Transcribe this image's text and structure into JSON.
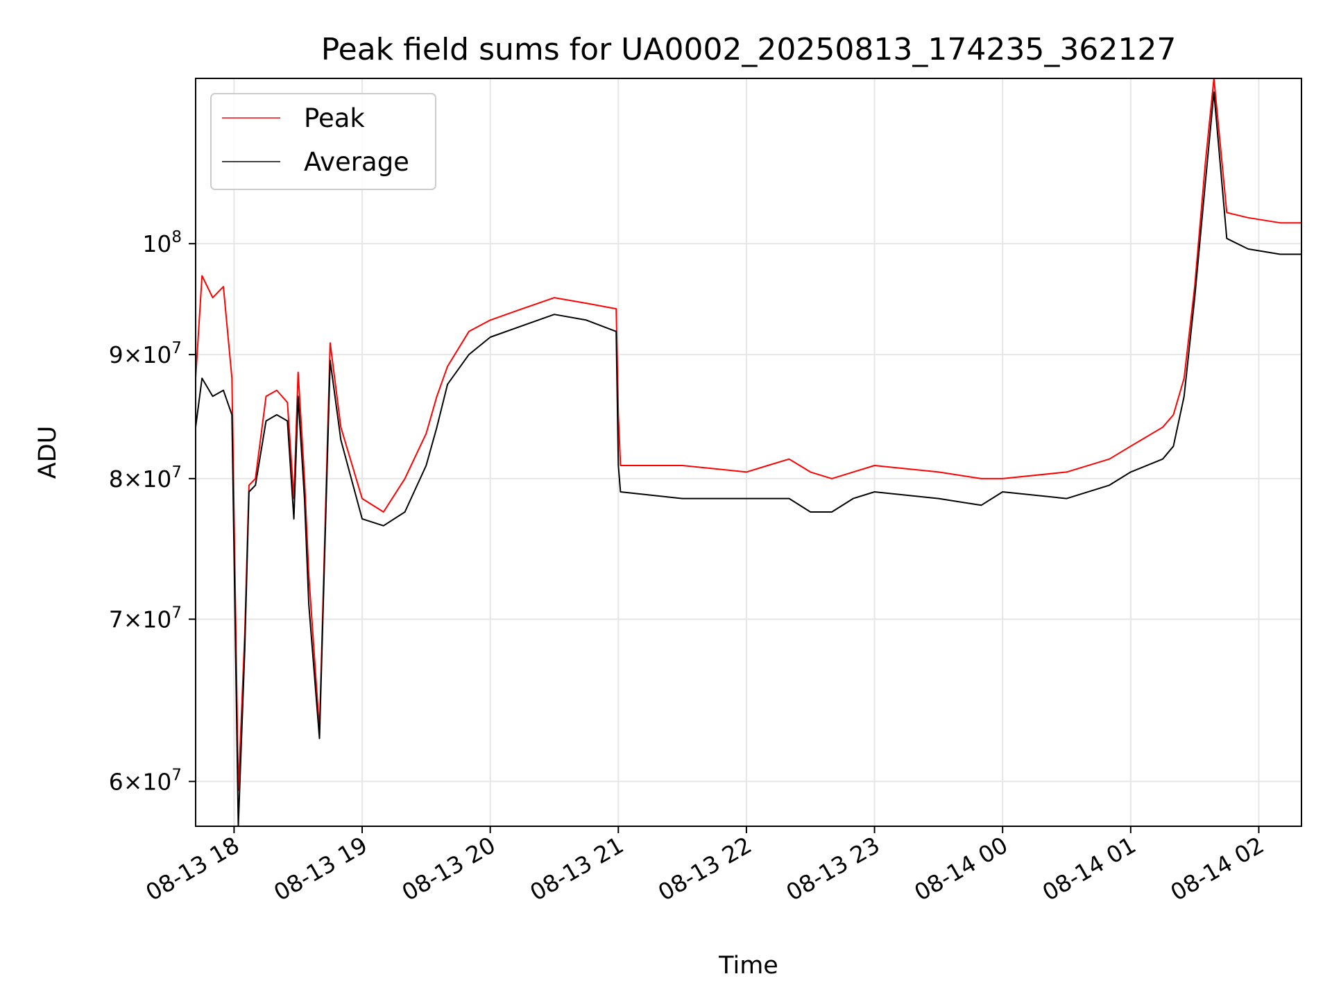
{
  "chart_data": {
    "type": "line",
    "title": "Peak field sums for UA0002_20250813_174235_362127",
    "xlabel": "Time",
    "ylabel": "ADU",
    "xscale": "time",
    "yscale": "log",
    "xlim": [
      "2025-08-13 17:42",
      "2025-08-14 02:20"
    ],
    "ylim": [
      57500000,
      117000000
    ],
    "x_ticks": [
      "2025-08-13 18:00",
      "2025-08-13 19:00",
      "2025-08-13 20:00",
      "2025-08-13 21:00",
      "2025-08-13 22:00",
      "2025-08-13 23:00",
      "2025-08-14 00:00",
      "2025-08-14 01:00",
      "2025-08-14 02:00"
    ],
    "x_tick_labels": [
      "08-13 18",
      "08-13 19",
      "08-13 20",
      "08-13 21",
      "08-13 22",
      "08-13 23",
      "08-14 00",
      "08-14 01",
      "08-14 02"
    ],
    "y_ticks": [
      {
        "value": 60000000,
        "mantissa": "6",
        "exponent": "7"
      },
      {
        "value": 70000000,
        "mantissa": "7",
        "exponent": "7"
      },
      {
        "value": 80000000,
        "mantissa": "8",
        "exponent": "7"
      },
      {
        "value": 90000000,
        "mantissa": "9",
        "exponent": "7"
      },
      {
        "value": 100000000,
        "mantissa": "",
        "exponent": "8"
      }
    ],
    "grid": true,
    "legend_position": "top-left",
    "series": [
      {
        "name": "Peak",
        "color": "#ff0000",
        "x": [
          "2025-08-13 17:42",
          "2025-08-13 17:45",
          "2025-08-13 17:50",
          "2025-08-13 17:55",
          "2025-08-13 17:59",
          "2025-08-13 18:02",
          "2025-08-13 18:05",
          "2025-08-13 18:07",
          "2025-08-13 18:10",
          "2025-08-13 18:15",
          "2025-08-13 18:20",
          "2025-08-13 18:25",
          "2025-08-13 18:28",
          "2025-08-13 18:30",
          "2025-08-13 18:33",
          "2025-08-13 18:35",
          "2025-08-13 18:40",
          "2025-08-13 18:45",
          "2025-08-13 18:50",
          "2025-08-13 19:00",
          "2025-08-13 19:10",
          "2025-08-13 19:20",
          "2025-08-13 19:30",
          "2025-08-13 19:35",
          "2025-08-13 19:40",
          "2025-08-13 19:50",
          "2025-08-13 20:00",
          "2025-08-13 20:15",
          "2025-08-13 20:30",
          "2025-08-13 20:45",
          "2025-08-13 20:59",
          "2025-08-13 21:00",
          "2025-08-13 21:01",
          "2025-08-13 21:30",
          "2025-08-13 22:00",
          "2025-08-13 22:10",
          "2025-08-13 22:20",
          "2025-08-13 22:30",
          "2025-08-13 22:40",
          "2025-08-13 22:50",
          "2025-08-13 23:00",
          "2025-08-13 23:30",
          "2025-08-13 23:50",
          "2025-08-14 00:00",
          "2025-08-14 00:30",
          "2025-08-14 00:50",
          "2025-08-14 01:00",
          "2025-08-14 01:15",
          "2025-08-14 01:20",
          "2025-08-14 01:25",
          "2025-08-14 01:30",
          "2025-08-14 01:35",
          "2025-08-14 01:39",
          "2025-08-14 01:45",
          "2025-08-14 01:55",
          "2025-08-14 02:10",
          "2025-08-14 02:20"
        ],
        "values": [
          88000000,
          97000000,
          95000000,
          96000000,
          88000000,
          59500000,
          69000000,
          79500000,
          80000000,
          86500000,
          87000000,
          86000000,
          78500000,
          88500000,
          80000000,
          73000000,
          63000000,
          91000000,
          84000000,
          78500000,
          77500000,
          80000000,
          83500000,
          86500000,
          89000000,
          92000000,
          93000000,
          94000000,
          95000000,
          94500000,
          94000000,
          85000000,
          81000000,
          81000000,
          80500000,
          81000000,
          81500000,
          80500000,
          80000000,
          80500000,
          81000000,
          80500000,
          80000000,
          80000000,
          80500000,
          81500000,
          82500000,
          84000000,
          85000000,
          88000000,
          96000000,
          108000000,
          117000000,
          103000000,
          102500000,
          102000000,
          102000000
        ]
      },
      {
        "name": "Average",
        "color": "#000000",
        "x": [
          "2025-08-13 17:42",
          "2025-08-13 17:45",
          "2025-08-13 17:50",
          "2025-08-13 17:55",
          "2025-08-13 17:59",
          "2025-08-13 18:02",
          "2025-08-13 18:05",
          "2025-08-13 18:07",
          "2025-08-13 18:10",
          "2025-08-13 18:15",
          "2025-08-13 18:20",
          "2025-08-13 18:25",
          "2025-08-13 18:28",
          "2025-08-13 18:30",
          "2025-08-13 18:33",
          "2025-08-13 18:35",
          "2025-08-13 18:40",
          "2025-08-13 18:45",
          "2025-08-13 18:50",
          "2025-08-13 19:00",
          "2025-08-13 19:10",
          "2025-08-13 19:20",
          "2025-08-13 19:30",
          "2025-08-13 19:35",
          "2025-08-13 19:40",
          "2025-08-13 19:50",
          "2025-08-13 20:00",
          "2025-08-13 20:15",
          "2025-08-13 20:30",
          "2025-08-13 20:45",
          "2025-08-13 20:59",
          "2025-08-13 21:00",
          "2025-08-13 21:01",
          "2025-08-13 21:30",
          "2025-08-13 22:00",
          "2025-08-13 22:10",
          "2025-08-13 22:20",
          "2025-08-13 22:30",
          "2025-08-13 22:40",
          "2025-08-13 22:50",
          "2025-08-13 23:00",
          "2025-08-13 23:30",
          "2025-08-13 23:50",
          "2025-08-14 00:00",
          "2025-08-14 00:30",
          "2025-08-14 00:50",
          "2025-08-14 01:00",
          "2025-08-14 01:15",
          "2025-08-14 01:20",
          "2025-08-14 01:25",
          "2025-08-14 01:30",
          "2025-08-14 01:35",
          "2025-08-14 01:39",
          "2025-08-14 01:45",
          "2025-08-14 01:55",
          "2025-08-14 02:10",
          "2025-08-14 02:20"
        ],
        "values": [
          84000000,
          88000000,
          86500000,
          87000000,
          85000000,
          57500000,
          68000000,
          79000000,
          79500000,
          84500000,
          85000000,
          84500000,
          77000000,
          86500000,
          78500000,
          71000000,
          62500000,
          89500000,
          83000000,
          77000000,
          76500000,
          77500000,
          81000000,
          84000000,
          87500000,
          90000000,
          91500000,
          92500000,
          93500000,
          93000000,
          92000000,
          81000000,
          79000000,
          78500000,
          78500000,
          78500000,
          78500000,
          77500000,
          77500000,
          78500000,
          79000000,
          78500000,
          78000000,
          79000000,
          78500000,
          79500000,
          80500000,
          81500000,
          82500000,
          86500000,
          95000000,
          106000000,
          115500000,
          100500000,
          99500000,
          99000000,
          99000000
        ]
      }
    ]
  }
}
